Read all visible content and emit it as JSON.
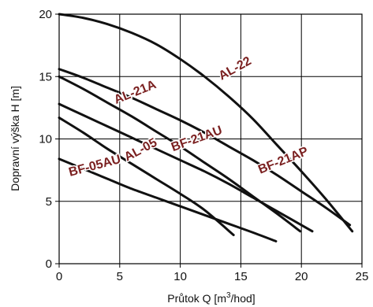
{
  "chart_data": {
    "type": "line",
    "title": "",
    "xlabel": "Průtok Q [m³/hod]",
    "ylabel": "Dopravní výška H [m]",
    "xlim": [
      0,
      25
    ],
    "ylim": [
      0,
      20
    ],
    "xticks": [
      0,
      5,
      10,
      15,
      20,
      25
    ],
    "yticks": [
      0,
      5,
      10,
      15,
      20
    ],
    "grid": true,
    "legend": "labels on curves",
    "colors": {
      "line": "#111111",
      "label": "#7a1f1f",
      "grid": "#000000"
    },
    "series": [
      {
        "name": "AL-22",
        "x": [
          0,
          2,
          4,
          6,
          8,
          10,
          12,
          14,
          16,
          18,
          20,
          22,
          24.2
        ],
        "y": [
          20.0,
          19.7,
          19.2,
          18.5,
          17.6,
          16.4,
          15.0,
          13.4,
          11.6,
          9.5,
          7.4,
          5.2,
          2.6
        ]
      },
      {
        "name": "AL-21A",
        "x": [
          0,
          2,
          4,
          6,
          8,
          10,
          12,
          14,
          16,
          18,
          19.9
        ],
        "y": [
          15.0,
          14.0,
          12.9,
          11.8,
          10.6,
          9.4,
          8.1,
          6.8,
          5.4,
          4.0,
          2.6
        ]
      },
      {
        "name": "BF-21AU",
        "x": [
          0,
          2,
          4,
          6,
          8,
          10,
          12,
          14,
          16,
          18,
          20.9
        ],
        "y": [
          12.8,
          11.9,
          11.0,
          10.1,
          9.2,
          8.3,
          7.4,
          6.4,
          5.3,
          4.2,
          2.6
        ]
      },
      {
        "name": "BF-21AP",
        "x": [
          0,
          2,
          4,
          6,
          8,
          10,
          12,
          14,
          16,
          18,
          20,
          22,
          24.0
        ],
        "y": [
          15.6,
          14.9,
          14.1,
          13.3,
          12.4,
          11.5,
          10.5,
          9.4,
          8.3,
          7.1,
          5.8,
          4.5,
          3.1
        ]
      },
      {
        "name": "AL-05",
        "x": [
          0,
          2,
          4,
          6,
          8,
          10,
          12,
          14.4
        ],
        "y": [
          11.7,
          10.5,
          9.2,
          8.0,
          6.8,
          5.6,
          4.3,
          2.3
        ]
      },
      {
        "name": "BF-05AU",
        "x": [
          0,
          2,
          4,
          6,
          8,
          10,
          12,
          14,
          16,
          17.9
        ],
        "y": [
          8.4,
          7.6,
          6.8,
          6.0,
          5.3,
          4.6,
          3.9,
          3.2,
          2.5,
          1.8
        ]
      }
    ],
    "annotations": [
      {
        "text": "AL-22",
        "x": 13.4,
        "y": 14.7,
        "angle": -29
      },
      {
        "text": "AL-21A",
        "x": 4.7,
        "y": 12.8,
        "angle": -22
      },
      {
        "text": "BF-21AU",
        "x": 9.4,
        "y": 9.0,
        "angle": -20
      },
      {
        "text": "BF-21AP",
        "x": 16.6,
        "y": 7.2,
        "angle": -22
      },
      {
        "text": "AL-05",
        "x": 5.6,
        "y": 8.2,
        "angle": -28
      },
      {
        "text": "BF-05AU",
        "x": 0.9,
        "y": 7.0,
        "angle": -15
      }
    ]
  }
}
